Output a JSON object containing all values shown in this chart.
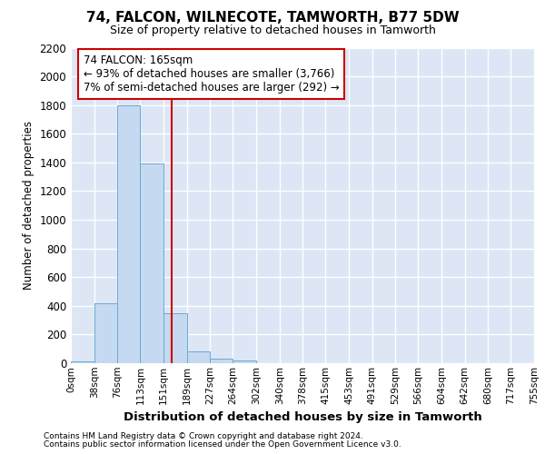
{
  "title": "74, FALCON, WILNECOTE, TAMWORTH, B77 5DW",
  "subtitle": "Size of property relative to detached houses in Tamworth",
  "xlabel": "Distribution of detached houses by size in Tamworth",
  "ylabel": "Number of detached properties",
  "footnote1": "Contains HM Land Registry data © Crown copyright and database right 2024.",
  "footnote2": "Contains public sector information licensed under the Open Government Licence v3.0.",
  "annotation_line1": "74 FALCON: 165sqm",
  "annotation_line2": "← 93% of detached houses are smaller (3,766)",
  "annotation_line3": "7% of semi-detached houses are larger (292) →",
  "bar_edges": [
    0,
    38,
    76,
    113,
    151,
    189,
    227,
    264,
    302,
    340,
    378,
    415,
    453,
    491,
    529,
    566,
    604,
    642,
    680,
    717,
    755
  ],
  "bar_values": [
    15,
    420,
    1800,
    1390,
    350,
    80,
    32,
    18,
    0,
    0,
    0,
    0,
    0,
    0,
    0,
    0,
    0,
    0,
    0,
    0
  ],
  "bar_color": "#c5d9f0",
  "bar_edge_color": "#6aaad4",
  "vline_color": "#cc0000",
  "vline_x": 165,
  "ylim": [
    0,
    2200
  ],
  "xlim": [
    0,
    755
  ],
  "yticks": [
    0,
    200,
    400,
    600,
    800,
    1000,
    1200,
    1400,
    1600,
    1800,
    2000,
    2200
  ],
  "xtick_labels": [
    "0sqm",
    "38sqm",
    "76sqm",
    "113sqm",
    "151sqm",
    "189sqm",
    "227sqm",
    "264sqm",
    "302sqm",
    "340sqm",
    "378sqm",
    "415sqm",
    "453sqm",
    "491sqm",
    "529sqm",
    "566sqm",
    "604sqm",
    "642sqm",
    "680sqm",
    "717sqm",
    "755sqm"
  ],
  "bg_color": "#dce6f5",
  "grid_color": "#ffffff",
  "annotation_box_color": "#ffffff",
  "annotation_border_color": "#cc0000",
  "fig_bg_color": "#ffffff"
}
